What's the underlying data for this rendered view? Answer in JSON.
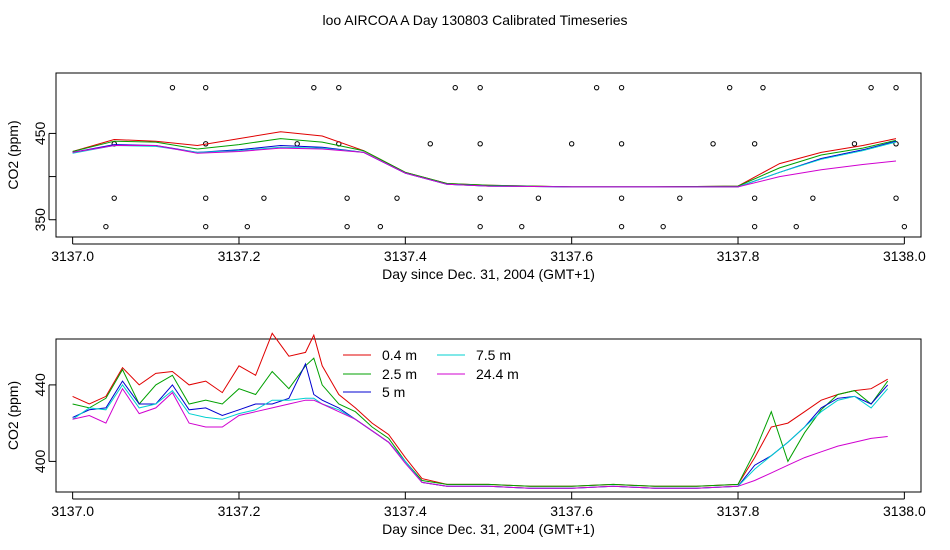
{
  "page": {
    "title": "loo AIRCOA A  Day 130803  Calibrated Timeseries"
  },
  "colors": {
    "0.4 m": "#e00000",
    "2.5 m": "#00a000",
    "5 m": "#0000d0",
    "7.5 m": "#00d0d0",
    "24.4 m": "#d000d0",
    "axis": "#000000"
  },
  "chart_data": [
    {
      "type": "line",
      "title": "loo AIRCOA A  Day 130803  Calibrated Timeseries",
      "xlabel": "Day since Dec. 31, 2004 (GMT+1)",
      "ylabel": "CO2 (ppm)",
      "xlim": [
        3136.98,
        3138.02
      ],
      "ylim": [
        330,
        520
      ],
      "xticks": [
        "3137.0",
        "3137.2",
        "3137.4",
        "3137.6",
        "3137.8",
        "3138.0"
      ],
      "yticks": [
        "350",
        "450"
      ],
      "grid": false,
      "legend": "none",
      "x": [
        3137.0,
        3137.05,
        3137.1,
        3137.15,
        3137.2,
        3137.25,
        3137.3,
        3137.35,
        3137.4,
        3137.45,
        3137.5,
        3137.6,
        3137.7,
        3137.8,
        3137.85,
        3137.9,
        3137.95,
        3137.99
      ],
      "series": [
        {
          "values": [
            429,
            443,
            441,
            436,
            444,
            452,
            447,
            430,
            405,
            392,
            390,
            388,
            388,
            389,
            415,
            428,
            436,
            444
          ]
        },
        {
          "values": [
            429,
            441,
            440,
            432,
            437,
            444,
            440,
            430,
            405,
            392,
            390,
            388,
            388,
            389,
            410,
            425,
            433,
            442
          ]
        },
        {
          "values": [
            428,
            437,
            436,
            428,
            431,
            436,
            434,
            428,
            404,
            391,
            389,
            388,
            388,
            388,
            405,
            421,
            431,
            441
          ]
        },
        {
          "values": [
            427,
            436,
            435,
            428,
            430,
            434,
            433,
            428,
            404,
            391,
            389,
            388,
            388,
            388,
            405,
            420,
            430,
            440
          ]
        },
        {
          "values": [
            428,
            436,
            436,
            427,
            429,
            433,
            432,
            428,
            404,
            391,
            389,
            388,
            388,
            388,
            400,
            408,
            414,
            418
          ]
        }
      ],
      "scatter_points": [
        [
          3137.12,
          503
        ],
        [
          3137.16,
          503
        ],
        [
          3137.29,
          503
        ],
        [
          3137.32,
          503
        ],
        [
          3137.46,
          503
        ],
        [
          3137.49,
          503
        ],
        [
          3137.63,
          503
        ],
        [
          3137.66,
          503
        ],
        [
          3137.79,
          503
        ],
        [
          3137.83,
          503
        ],
        [
          3137.96,
          503
        ],
        [
          3137.99,
          503
        ],
        [
          3137.05,
          438
        ],
        [
          3137.16,
          438
        ],
        [
          3137.27,
          438
        ],
        [
          3137.32,
          438
        ],
        [
          3137.43,
          438
        ],
        [
          3137.49,
          438
        ],
        [
          3137.6,
          438
        ],
        [
          3137.66,
          438
        ],
        [
          3137.77,
          438
        ],
        [
          3137.82,
          438
        ],
        [
          3137.94,
          438
        ],
        [
          3137.99,
          438
        ],
        [
          3137.05,
          375
        ],
        [
          3137.16,
          375
        ],
        [
          3137.23,
          375
        ],
        [
          3137.33,
          375
        ],
        [
          3137.39,
          375
        ],
        [
          3137.49,
          375
        ],
        [
          3137.56,
          375
        ],
        [
          3137.66,
          375
        ],
        [
          3137.73,
          375
        ],
        [
          3137.82,
          375
        ],
        [
          3137.89,
          375
        ],
        [
          3137.99,
          375
        ],
        [
          3137.04,
          342
        ],
        [
          3137.16,
          342
        ],
        [
          3137.21,
          342
        ],
        [
          3137.33,
          342
        ],
        [
          3137.37,
          342
        ],
        [
          3137.49,
          342
        ],
        [
          3137.54,
          342
        ],
        [
          3137.66,
          342
        ],
        [
          3137.71,
          342
        ],
        [
          3137.82,
          342
        ],
        [
          3137.87,
          342
        ],
        [
          3138.0,
          342
        ]
      ]
    },
    {
      "type": "line",
      "xlabel": "Day since Dec. 31, 2004 (GMT+1)",
      "ylabel": "CO2 (ppm)",
      "xlim": [
        3136.98,
        3138.02
      ],
      "ylim": [
        384,
        464
      ],
      "xticks": [
        "3137.0",
        "3137.2",
        "3137.4",
        "3137.6",
        "3137.8",
        "3138.0"
      ],
      "yticks": [
        "400",
        "440"
      ],
      "grid": false,
      "legend": "top-center",
      "x": [
        3137.0,
        3137.02,
        3137.04,
        3137.06,
        3137.08,
        3137.1,
        3137.12,
        3137.14,
        3137.16,
        3137.18,
        3137.2,
        3137.22,
        3137.24,
        3137.26,
        3137.28,
        3137.29,
        3137.3,
        3137.32,
        3137.34,
        3137.36,
        3137.38,
        3137.4,
        3137.42,
        3137.45,
        3137.5,
        3137.55,
        3137.6,
        3137.65,
        3137.7,
        3137.75,
        3137.8,
        3137.82,
        3137.84,
        3137.86,
        3137.88,
        3137.9,
        3137.92,
        3137.94,
        3137.96,
        3137.98
      ],
      "series": [
        {
          "name": "0.4 m",
          "values": [
            434,
            430,
            434,
            449,
            440,
            446,
            447,
            440,
            442,
            436,
            450,
            445,
            467,
            455,
            457,
            466,
            450,
            435,
            428,
            420,
            414,
            402,
            391,
            388,
            388,
            387,
            387,
            388,
            387,
            387,
            388,
            402,
            418,
            420,
            426,
            432,
            435,
            437,
            438,
            443
          ]
        },
        {
          "name": "2.5 m",
          "values": [
            430,
            428,
            433,
            448,
            430,
            440,
            445,
            430,
            432,
            430,
            438,
            435,
            447,
            438,
            450,
            454,
            440,
            430,
            426,
            418,
            412,
            400,
            390,
            388,
            388,
            387,
            387,
            388,
            387,
            387,
            388,
            405,
            426,
            400,
            415,
            427,
            435,
            437,
            430,
            442
          ]
        },
        {
          "name": "5 m",
          "values": [
            423,
            427,
            428,
            442,
            430,
            430,
            440,
            427,
            428,
            424,
            427,
            430,
            430,
            433,
            451,
            435,
            432,
            428,
            422,
            416,
            410,
            400,
            389,
            387,
            387,
            386,
            386,
            387,
            386,
            386,
            387,
            398,
            403,
            410,
            418,
            428,
            433,
            434,
            430,
            440
          ]
        },
        {
          "name": "7.5 m",
          "values": [
            422,
            428,
            427,
            440,
            428,
            430,
            437,
            425,
            423,
            422,
            425,
            427,
            432,
            432,
            433,
            433,
            430,
            427,
            422,
            416,
            410,
            400,
            389,
            387,
            387,
            386,
            386,
            387,
            386,
            386,
            387,
            396,
            403,
            410,
            418,
            426,
            432,
            434,
            428,
            438
          ]
        },
        {
          "name": "24.4 m",
          "values": [
            422,
            424,
            420,
            438,
            425,
            428,
            436,
            420,
            418,
            418,
            424,
            426,
            428,
            430,
            432,
            432,
            430,
            426,
            422,
            416,
            410,
            399,
            389,
            387,
            387,
            386,
            386,
            387,
            386,
            386,
            387,
            390,
            394,
            398,
            402,
            405,
            408,
            410,
            412,
            413
          ]
        }
      ]
    }
  ]
}
